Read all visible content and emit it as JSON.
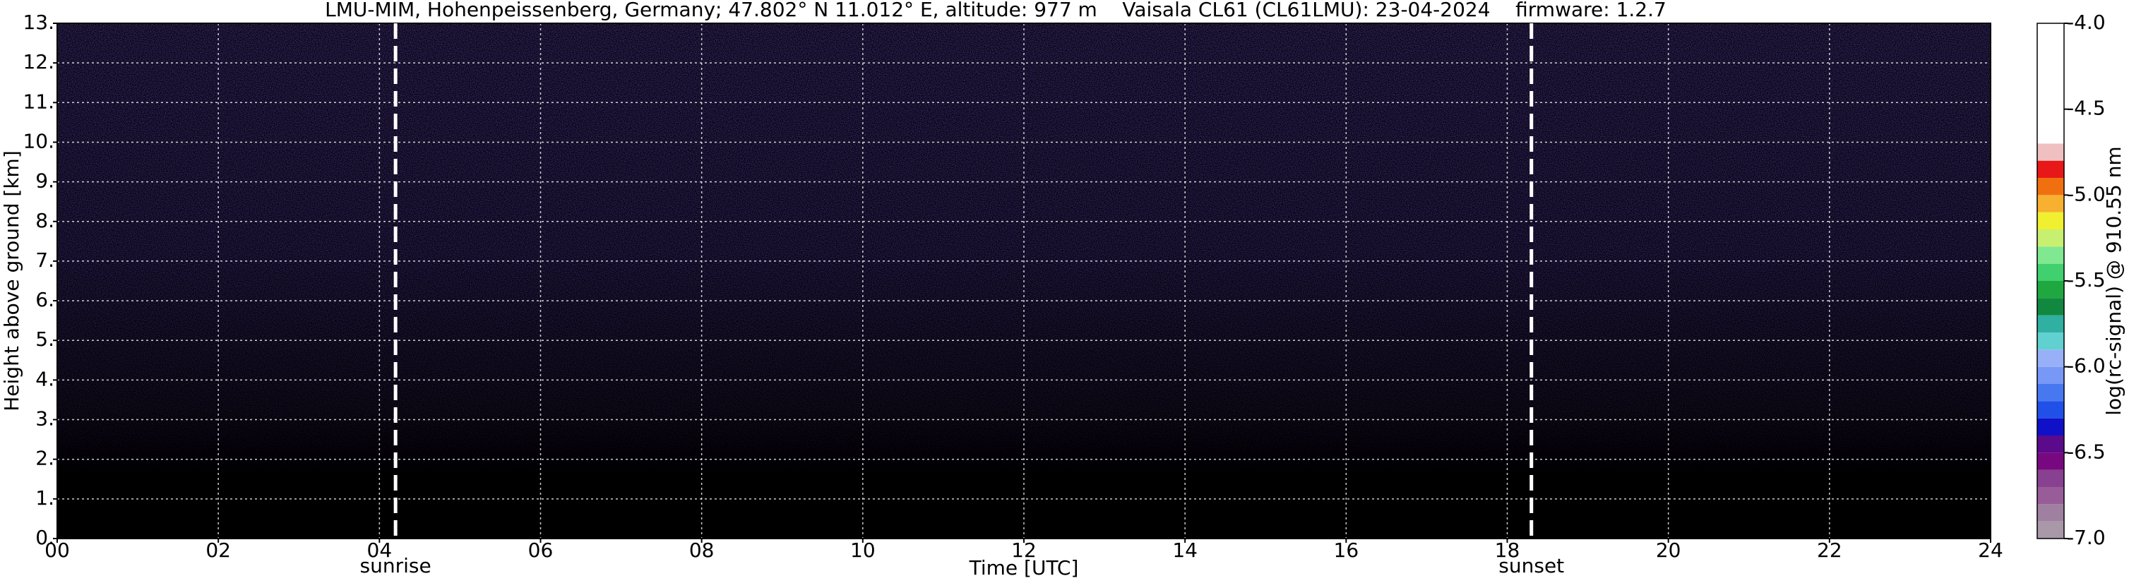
{
  "chart_data": {
    "type": "heatmap",
    "title": "LMU-MIM, Hohenpeissenberg, Germany; 47.802° N 11.012° E, altitude: 977 m    Vaisala CL61 (CL61LMU): 23-04-2024    firmware: 1.2.7",
    "xlabel": "Time [UTC]",
    "ylabel": "Height above ground [km]",
    "xlim": [
      0,
      24
    ],
    "xticks": [
      {
        "value": 0,
        "label": "00"
      },
      {
        "value": 2,
        "label": "02"
      },
      {
        "value": 4,
        "label": "04"
      },
      {
        "value": 6,
        "label": "06"
      },
      {
        "value": 8,
        "label": "08"
      },
      10,
      12,
      14,
      16,
      18,
      20,
      22,
      24
    ],
    "ylim": [
      0,
      13
    ],
    "yticks": [
      {
        "value": 0,
        "label": "0."
      },
      {
        "value": 1,
        "label": "1."
      },
      {
        "value": 2,
        "label": "2."
      },
      {
        "value": 3,
        "label": "3."
      },
      {
        "value": 4,
        "label": "4."
      },
      {
        "value": 5,
        "label": "5."
      },
      {
        "value": 6,
        "label": "6."
      },
      {
        "value": 7,
        "label": "7."
      },
      {
        "value": 8,
        "label": "8."
      },
      {
        "value": 9,
        "label": "9."
      },
      {
        "value": 10,
        "label": "10."
      },
      {
        "value": 11,
        "label": "11."
      },
      {
        "value": 12,
        "label": "12."
      },
      {
        "value": 13,
        "label": "13."
      }
    ],
    "grid": true,
    "markers": [
      {
        "label": "sunrise",
        "x": 4.2
      },
      {
        "label": "sunset",
        "x": 18.3
      }
    ],
    "colorbar": {
      "label": "log(rc-signal) @ 910.55 nm",
      "lim": [
        -7.0,
        -4.0
      ],
      "ticks": [
        {
          "value": -7.0,
          "label": "-7.0"
        },
        {
          "value": -6.5,
          "label": "-6.5"
        },
        {
          "value": -6.0,
          "label": "-6.0"
        },
        {
          "value": -5.5,
          "label": "-5.5"
        },
        {
          "value": -5.0,
          "label": "-5.0"
        },
        {
          "value": -4.5,
          "label": "-4.5"
        },
        {
          "value": -4.0,
          "label": "-4.0"
        }
      ],
      "bounds": [
        -7.0,
        -6.9,
        -6.8,
        -6.7,
        -6.6,
        -6.5,
        -6.4,
        -6.3,
        -6.2,
        -6.1,
        -6.0,
        -5.9,
        -5.8,
        -5.7,
        -5.6,
        -5.5,
        -5.4,
        -5.3,
        -5.2,
        -5.1,
        -5.0,
        -4.9,
        -4.8,
        -4.7,
        -4.0
      ],
      "colors": [
        "#a898a8",
        "#a080a0",
        "#985c98",
        "#884090",
        "#780880",
        "#5a0a8a",
        "#1010c8",
        "#2050e8",
        "#4878f0",
        "#7898f8",
        "#98b0f8",
        "#60d0d0",
        "#30b0a0",
        "#108840",
        "#20a840",
        "#40d070",
        "#80e890",
        "#c8f070",
        "#f0f030",
        "#f8b030",
        "#f07010",
        "#e81818",
        "#f0c0c0",
        "#ffffff"
      ]
    }
  }
}
